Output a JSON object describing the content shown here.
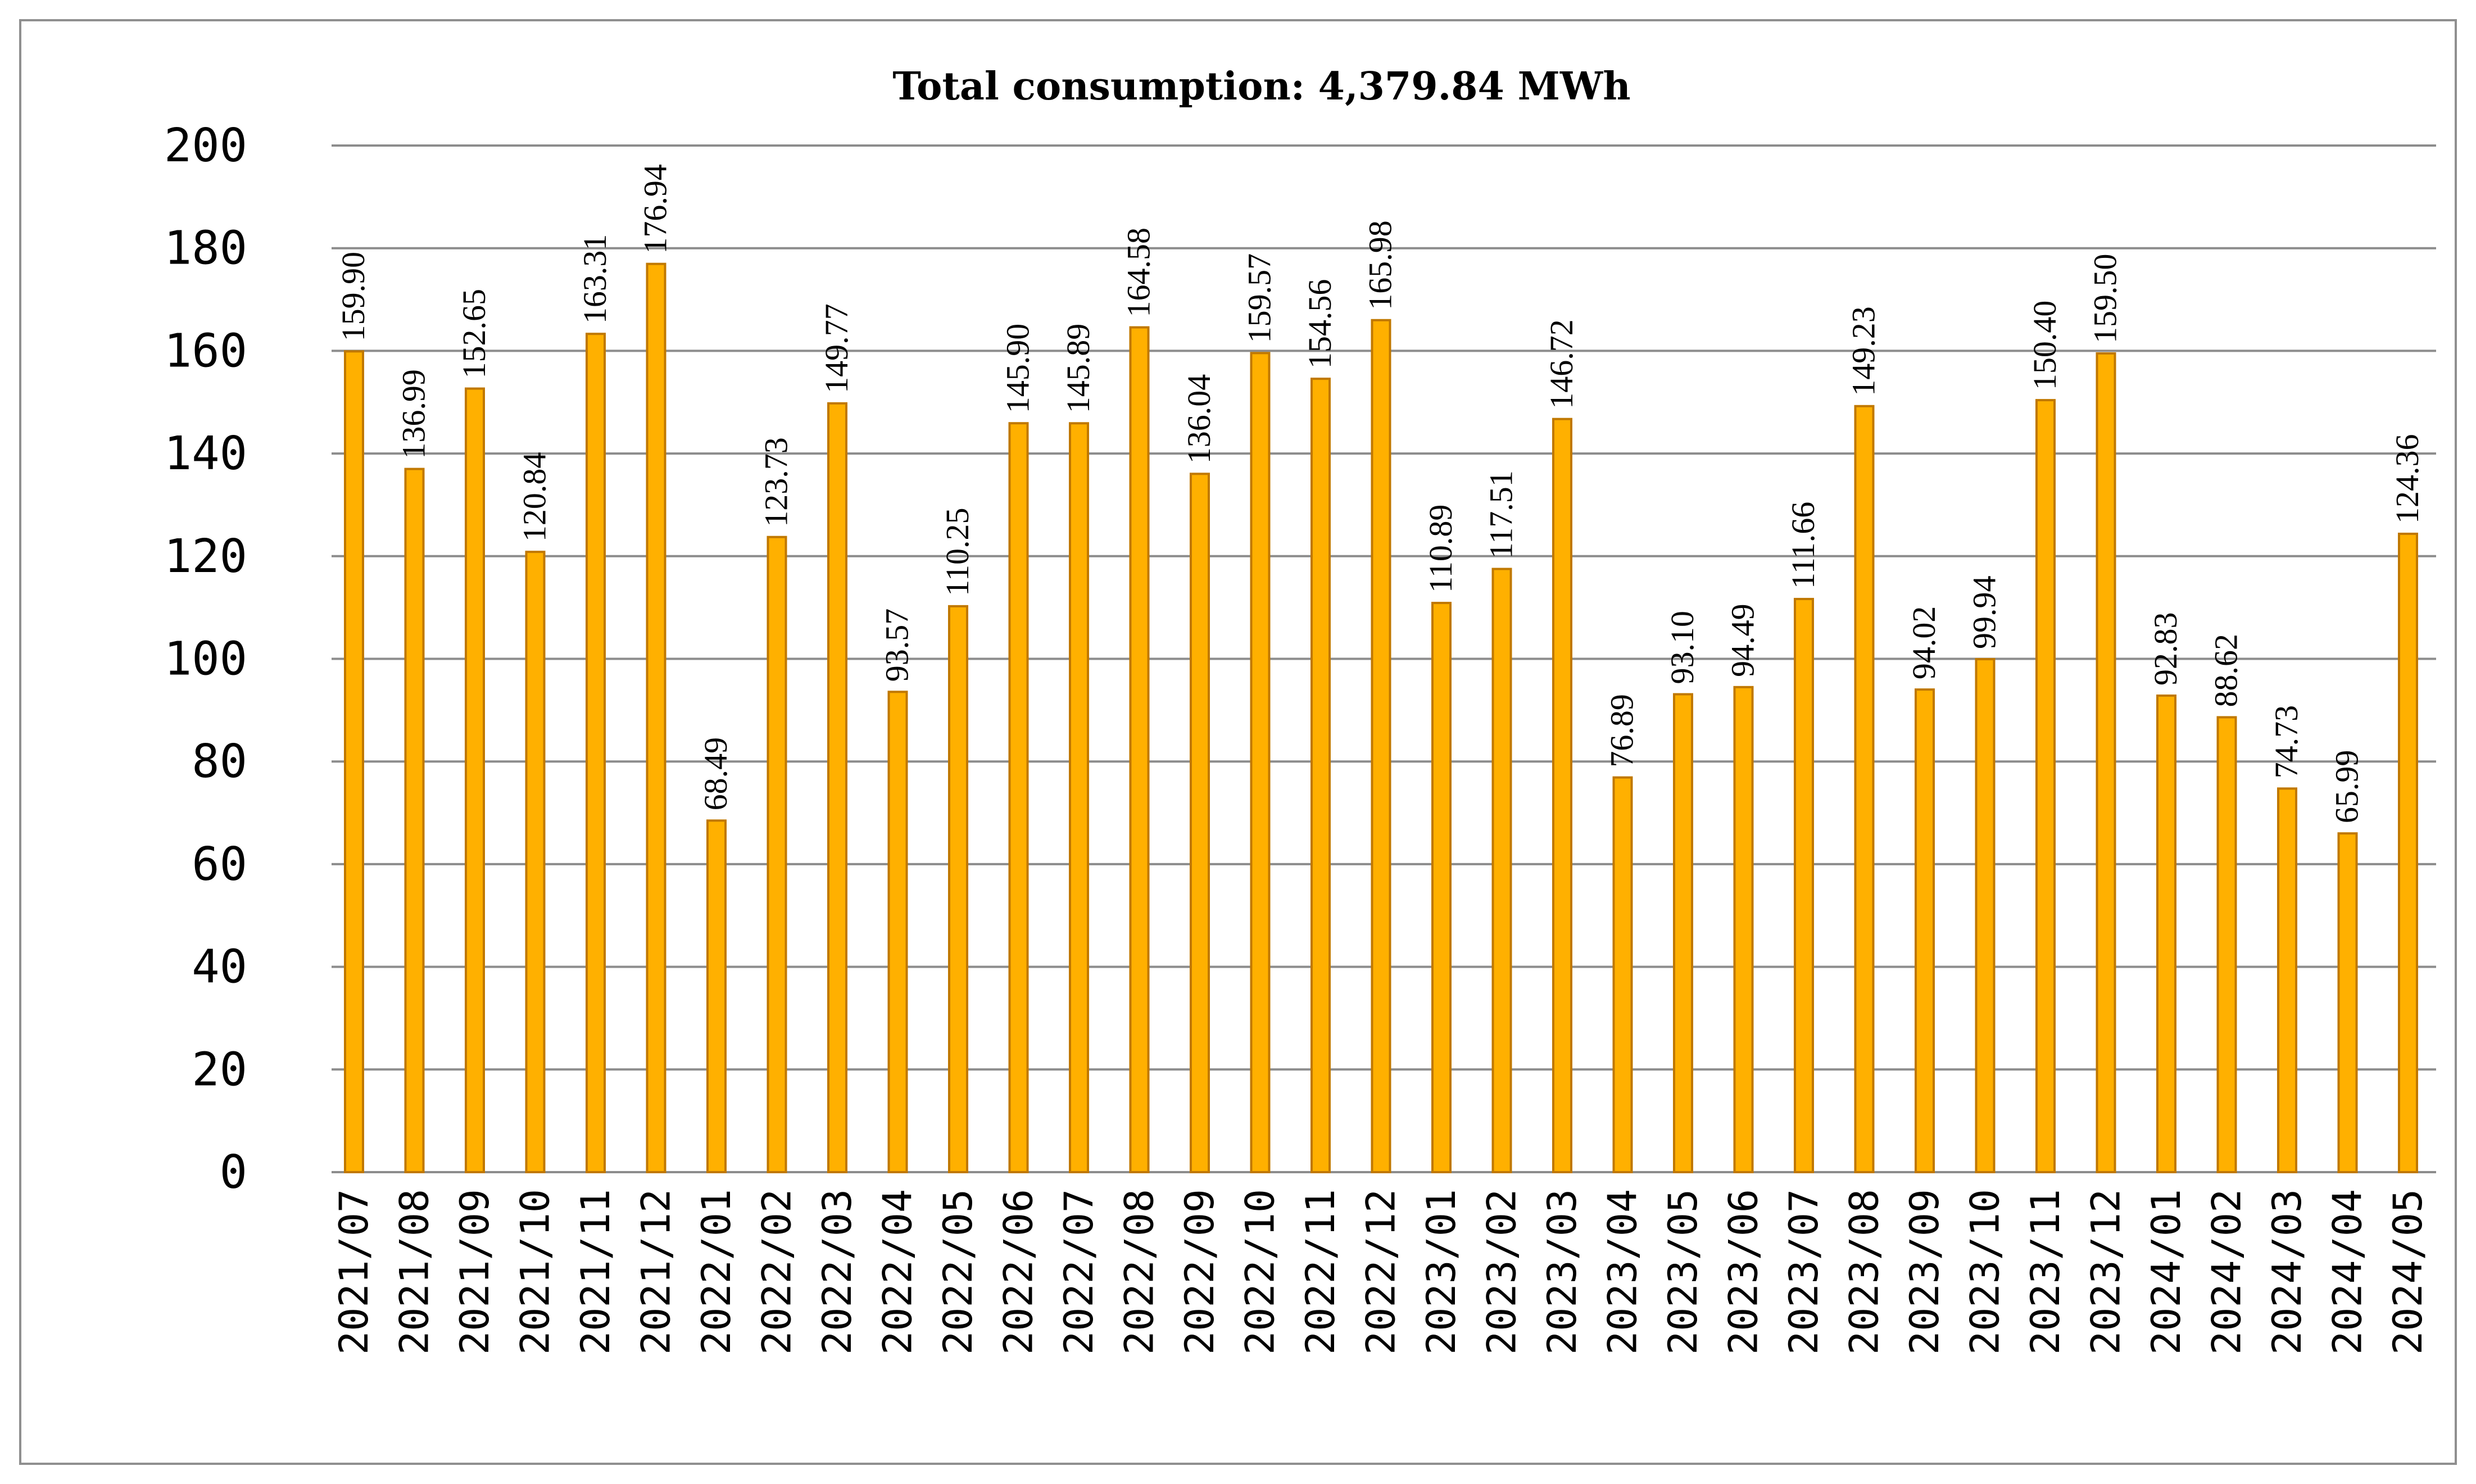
{
  "chart_data": {
    "type": "bar",
    "title": "Total consumption: 4,379.84 MWh",
    "xlabel": "",
    "ylabel": "",
    "ylim": [
      0,
      200
    ],
    "yticks": [
      "0",
      "20",
      "40",
      "60",
      "80",
      "100",
      "120",
      "140",
      "160",
      "180",
      "200"
    ],
    "grid": true,
    "bar_color": "#ffb000",
    "bar_edge_color": "#c07800",
    "categories": [
      "2021/07",
      "2021/08",
      "2021/09",
      "2021/10",
      "2021/11",
      "2021/12",
      "2022/01",
      "2022/02",
      "2022/03",
      "2022/04",
      "2022/05",
      "2022/06",
      "2022/07",
      "2022/08",
      "2022/09",
      "2022/10",
      "2022/11",
      "2022/12",
      "2023/01",
      "2023/02",
      "2023/03",
      "2023/04",
      "2023/05",
      "2023/06",
      "2023/07",
      "2023/08",
      "2023/09",
      "2023/10",
      "2023/11",
      "2023/12",
      "2024/01",
      "2024/02",
      "2024/03",
      "2024/04",
      "2024/05"
    ],
    "values": [
      159.9,
      136.99,
      152.65,
      120.84,
      163.31,
      176.94,
      68.49,
      123.73,
      149.77,
      93.57,
      110.25,
      145.9,
      145.89,
      164.58,
      136.04,
      159.57,
      154.56,
      165.98,
      110.89,
      117.51,
      146.72,
      76.89,
      93.1,
      94.49,
      111.66,
      149.23,
      94.02,
      99.94,
      150.4,
      159.5,
      92.83,
      88.62,
      74.73,
      65.99,
      124.36
    ],
    "value_labels": [
      "159.90",
      "136.99",
      "152.65",
      "120.84",
      "163.31",
      "176.94",
      "68.49",
      "123.73",
      "149.77",
      "93.57",
      "110.25",
      "145.90",
      "145.89",
      "164.58",
      "136.04",
      "159.57",
      "154.56",
      "165.98",
      "110.89",
      "117.51",
      "146.72",
      "76.89",
      "93.10",
      "94.49",
      "111.66",
      "149.23",
      "94.02",
      "99.94",
      "150.40",
      "159.50",
      "92.83",
      "88.62",
      "74.73",
      "65.99",
      "124.36"
    ]
  }
}
